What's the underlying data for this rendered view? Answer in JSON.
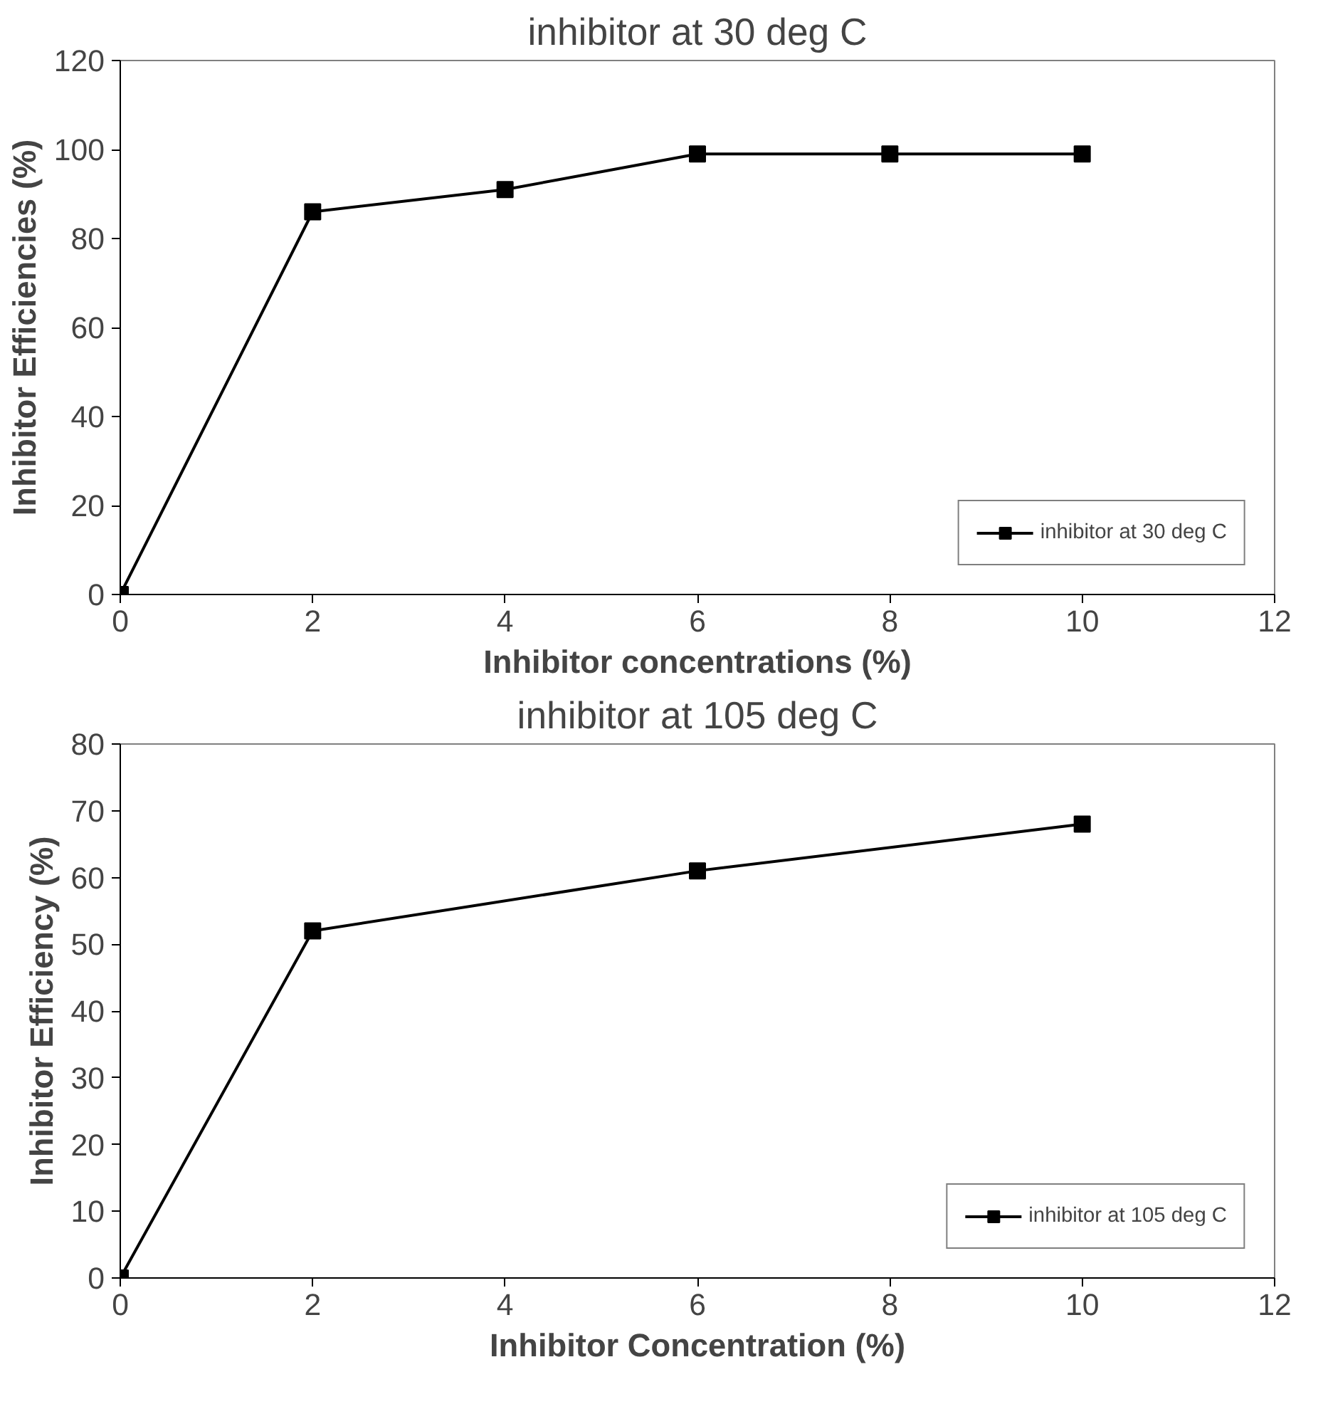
{
  "chart_data": [
    {
      "type": "line",
      "title": "inhibitor at 30 deg C",
      "xlabel": "Inhibitor concentrations (%)",
      "ylabel": "Inhibitor Efficiencies (%)",
      "x": [
        0,
        2,
        4,
        6,
        8,
        10
      ],
      "series": [
        {
          "name": "inhibitor at 30 deg C",
          "color": "#000000",
          "values": [
            0,
            86,
            91,
            99,
            99,
            99
          ]
        }
      ],
      "xlim": [
        0,
        12
      ],
      "xticks": [
        0,
        2,
        4,
        6,
        8,
        10,
        12
      ],
      "ylim": [
        0,
        120
      ],
      "yticks": [
        0,
        20,
        40,
        60,
        80,
        100,
        120
      ],
      "grid": false,
      "legend": "bottom right",
      "marker": "square",
      "line_style": "solid"
    },
    {
      "type": "line",
      "title": "inhibitor at 105 deg C",
      "xlabel": "Inhibitor Concentration (%)",
      "ylabel": "Inhibitor Efficiency (%)",
      "x": [
        0,
        2,
        6,
        10
      ],
      "series": [
        {
          "name": "inhibitor at 105 deg C",
          "color": "#000000",
          "values": [
            0,
            52,
            61,
            68
          ]
        }
      ],
      "xlim": [
        0,
        12
      ],
      "xticks": [
        0,
        2,
        4,
        6,
        8,
        10,
        12
      ],
      "ylim": [
        0,
        80
      ],
      "yticks": [
        0,
        10,
        20,
        30,
        40,
        50,
        60,
        70,
        80
      ],
      "grid": false,
      "legend": "bottom right",
      "marker": "square",
      "line_style": "solid"
    }
  ]
}
